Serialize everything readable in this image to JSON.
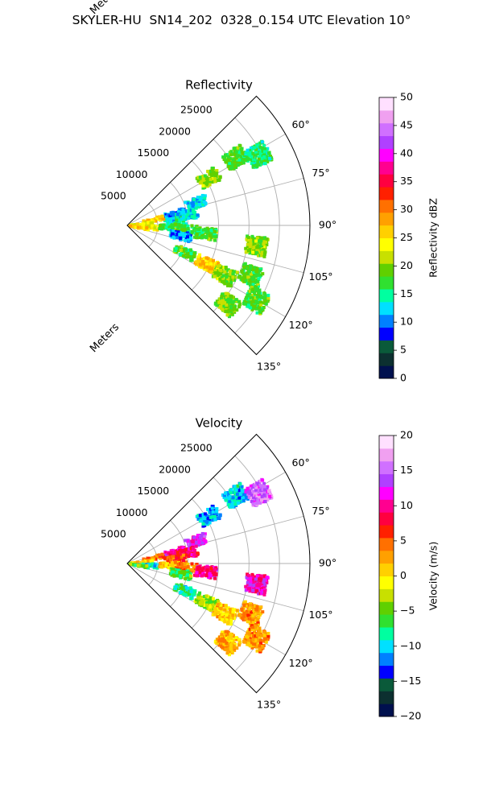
{
  "figure": {
    "title": "SKYLER-HU  SN14_202  0328_0.154 UTC Elevation 10°"
  },
  "chart_data": [
    {
      "type": "polar-sector",
      "title": "Reflectivity",
      "radial_label": "Meters",
      "angle_range_deg": [
        45,
        135
      ],
      "radius_range_m": [
        0,
        30000
      ],
      "radial_ticks": [
        5000,
        10000,
        15000,
        20000,
        25000
      ],
      "radial_tick_labels": [
        "5000",
        "10000",
        "15000",
        "20000",
        "25000"
      ],
      "angle_ticks": [
        60,
        75,
        90,
        105,
        120,
        135
      ],
      "angle_tick_labels": [
        "60°",
        "75°",
        "90°",
        "105°",
        "120°",
        "135°"
      ],
      "grid": true,
      "colorbar": {
        "label": "Reflectivity dBZ",
        "range": [
          0,
          50
        ],
        "ticks": [
          "0",
          "5",
          "10",
          "15",
          "20",
          "25",
          "30",
          "35",
          "40",
          "45",
          "50"
        ],
        "colors": [
          "#00104e",
          "#0c3030",
          "#0a5a3a",
          "#0000ff",
          "#0080ff",
          "#00e0ff",
          "#00ffa0",
          "#30e030",
          "#60d000",
          "#c8e000",
          "#ffff00",
          "#ffd000",
          "#ffa000",
          "#ff7000",
          "#ff2000",
          "#ff0040",
          "#ff0090",
          "#ff00ff",
          "#b040ff",
          "#d070ff",
          "#f0a0f0",
          "#ffe0ff"
        ]
      },
      "echo_regions": [
        {
          "az": 60,
          "r_m": 15500,
          "value": 20
        },
        {
          "az": 58,
          "r_m": 21000,
          "value": 18
        },
        {
          "az": 62,
          "r_m": 24500,
          "value": 16
        },
        {
          "az": 77,
          "r_m": 8200,
          "value": 11
        },
        {
          "az": 72,
          "r_m": 12000,
          "value": 12
        },
        {
          "az": 80,
          "r_m": 10000,
          "value": 13
        },
        {
          "az": 85,
          "r_m": 8000,
          "value": 14
        },
        {
          "az": 78,
          "r_m": 4500,
          "value": 27
        },
        {
          "az": 85,
          "r_m": 2500,
          "value": 24
        },
        {
          "az": 95,
          "r_m": 3500,
          "value": 24
        },
        {
          "az": 100,
          "r_m": 2000,
          "value": 26
        },
        {
          "az": 92,
          "r_m": 7000,
          "value": 18
        },
        {
          "az": 94,
          "r_m": 10000,
          "value": 17
        },
        {
          "az": 96,
          "r_m": 13000,
          "value": 18
        },
        {
          "az": 101,
          "r_m": 9000,
          "value": 11
        },
        {
          "az": 99,
          "r_m": 21500,
          "value": 20
        },
        {
          "az": 115,
          "r_m": 10500,
          "value": 18
        },
        {
          "az": 116,
          "r_m": 14500,
          "value": 26
        },
        {
          "az": 117,
          "r_m": 18000,
          "value": 20
        },
        {
          "az": 112,
          "r_m": 22000,
          "value": 18
        },
        {
          "az": 128,
          "r_m": 21000,
          "value": 19
        },
        {
          "az": 120,
          "r_m": 24500,
          "value": 18
        }
      ]
    },
    {
      "type": "polar-sector",
      "title": "Velocity",
      "radial_label": "Meters",
      "angle_range_deg": [
        45,
        135
      ],
      "radius_range_m": [
        0,
        30000
      ],
      "radial_ticks": [
        5000,
        10000,
        15000,
        20000,
        25000
      ],
      "radial_tick_labels": [
        "5000",
        "10000",
        "15000",
        "20000",
        "25000"
      ],
      "angle_ticks": [
        60,
        75,
        90,
        105,
        120,
        135
      ],
      "angle_tick_labels": [
        "60°",
        "75°",
        "90°",
        "105°",
        "120°",
        "135°"
      ],
      "grid": true,
      "colorbar": {
        "label": "Velocity (m/s)",
        "range": [
          -20,
          20
        ],
        "ticks": [
          "−20",
          "−15",
          "−10",
          "−5",
          "0",
          "5",
          "10",
          "15",
          "20"
        ],
        "colors": [
          "#00104e",
          "#0c3030",
          "#0a5a3a",
          "#0000ff",
          "#0080ff",
          "#00e0ff",
          "#00ffa0",
          "#30e030",
          "#60d000",
          "#c8e000",
          "#ffff00",
          "#ffd000",
          "#ffa000",
          "#ff7000",
          "#ff2000",
          "#ff0040",
          "#ff0090",
          "#ff00ff",
          "#b040ff",
          "#d070ff",
          "#f0a0f0",
          "#ffe0ff"
        ]
      },
      "echo_regions": [
        {
          "az": 60,
          "r_m": 15500,
          "value": -11
        },
        {
          "az": 58,
          "r_m": 21000,
          "value": -10
        },
        {
          "az": 62,
          "r_m": 24500,
          "value": 15
        },
        {
          "az": 77,
          "r_m": 8200,
          "value": 11
        },
        {
          "az": 72,
          "r_m": 12000,
          "value": 12
        },
        {
          "az": 80,
          "r_m": 10000,
          "value": 9
        },
        {
          "az": 85,
          "r_m": 8000,
          "value": 6
        },
        {
          "az": 78,
          "r_m": 4500,
          "value": 5
        },
        {
          "az": 85,
          "r_m": 2500,
          "value": 2
        },
        {
          "az": 95,
          "r_m": 3500,
          "value": -9
        },
        {
          "az": 100,
          "r_m": 2000,
          "value": -5
        },
        {
          "az": 92,
          "r_m": 7000,
          "value": 2
        },
        {
          "az": 94,
          "r_m": 10000,
          "value": 4
        },
        {
          "az": 96,
          "r_m": 13000,
          "value": 10
        },
        {
          "az": 101,
          "r_m": 9000,
          "value": -6
        },
        {
          "az": 99,
          "r_m": 21500,
          "value": 11
        },
        {
          "az": 115,
          "r_m": 10500,
          "value": -8
        },
        {
          "az": 116,
          "r_m": 14500,
          "value": -4
        },
        {
          "az": 117,
          "r_m": 18000,
          "value": 1
        },
        {
          "az": 112,
          "r_m": 22000,
          "value": 3
        },
        {
          "az": 128,
          "r_m": 21000,
          "value": 2
        },
        {
          "az": 120,
          "r_m": 24500,
          "value": 3
        }
      ]
    }
  ]
}
